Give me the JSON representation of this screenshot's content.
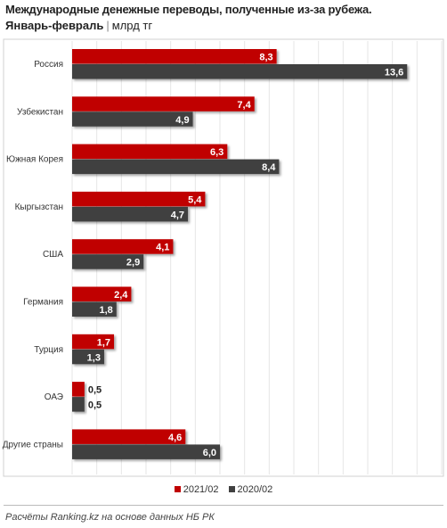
{
  "header": {
    "title": "Международные денежные переводы, полученные из-за рубежа.",
    "period": "Январь-февраль",
    "separator": "|",
    "unit": "млрд тг"
  },
  "legend": {
    "items": [
      {
        "label": "2021/02",
        "color": "#c00000"
      },
      {
        "label": "2020/02",
        "color": "#404040"
      }
    ]
  },
  "source": "Расчёты Ranking.kz на основе данных НБ РК",
  "chart_data": {
    "type": "bar",
    "orientation": "horizontal",
    "categories": [
      "Россия",
      "Узбекистан",
      "Южная Корея",
      "Кыргызстан",
      "США",
      "Германия",
      "Турция",
      "ОАЭ",
      "Другие страны"
    ],
    "series": [
      {
        "name": "2021/02",
        "color": "#c00000",
        "values": [
          8.3,
          7.4,
          6.3,
          5.4,
          4.1,
          2.4,
          1.7,
          0.5,
          4.6
        ],
        "labels": [
          "8,3",
          "7,4",
          "6,3",
          "5,4",
          "4,1",
          "2,4",
          "1,7",
          "0,5",
          "4,6"
        ]
      },
      {
        "name": "2020/02",
        "color": "#404040",
        "values": [
          13.6,
          4.9,
          8.4,
          4.7,
          2.9,
          1.8,
          1.3,
          0.5,
          6.0
        ],
        "labels": [
          "13,6",
          "4,9",
          "8,4",
          "4,7",
          "2,9",
          "1,8",
          "1,3",
          "0,5",
          "6,0"
        ]
      }
    ],
    "xlim": [
      0,
      15
    ],
    "grid": true,
    "legend_position": "bottom"
  }
}
